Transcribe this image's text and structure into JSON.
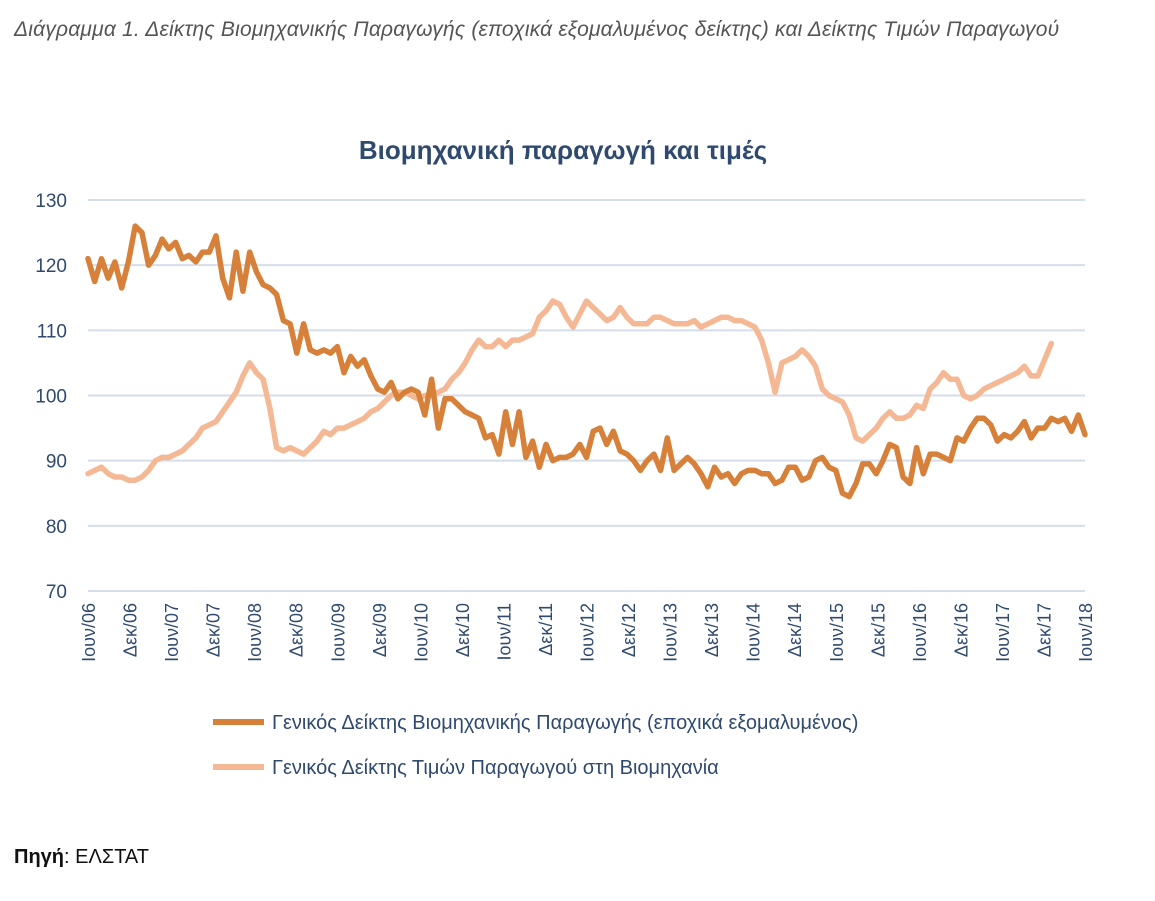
{
  "caption": "Διάγραμμα 1. Δείκτης Βιομηχανικής Παραγωγής (εποχικά εξομαλυμένος δείκτης) και Δείκτης Τιμών Παραγωγού",
  "source": {
    "label": "Πηγή",
    "separator": ": ",
    "value": "ΕΛΣΤΑΤ"
  },
  "colors": {
    "production": "#D6803A",
    "prices": "#F5B895",
    "title": "#2F4A6E",
    "axis_text": "#2F4A6E",
    "grid": "#D5DEE9"
  },
  "chart_data": {
    "type": "line",
    "title": "Βιομηχανική παραγωγή και τιμές",
    "xlabel": "",
    "ylabel": "",
    "ylim": [
      70,
      130
    ],
    "yticks": [
      70,
      80,
      90,
      100,
      110,
      120,
      130
    ],
    "grid": true,
    "legend_position": "bottom",
    "x_start": "2006-06",
    "x_end": "2018-06",
    "x_tick_labels": [
      "Ιουν/06",
      "Δεκ/06",
      "Ιουν/07",
      "Δεκ/07",
      "Ιουν/08",
      "Δεκ/08",
      "Ιουν/09",
      "Δεκ/09",
      "Ιουν/10",
      "Δεκ/10",
      "Ιουν/11",
      "Δεκ/11",
      "Ιουν/12",
      "Δεκ/12",
      "Ιουν/13",
      "Δεκ/13",
      "Ιουν/14",
      "Δεκ/14",
      "Ιουν/15",
      "Δεκ/15",
      "Ιουν/16",
      "Δεκ/16",
      "Ιουν/17",
      "Δεκ/17",
      "Ιουν/18"
    ],
    "series": [
      {
        "name": "Γενικός Δείκτης Βιομηχανικής Παραγωγής (εποχικά εξομαλυμένος)",
        "values": [
          121.0,
          117.5,
          121.0,
          118.0,
          120.5,
          116.5,
          120.5,
          126.0,
          125.0,
          120.0,
          121.5,
          124.0,
          122.5,
          123.5,
          121.0,
          121.5,
          120.5,
          122.0,
          122.0,
          124.5,
          118.0,
          115.0,
          122.0,
          116.0,
          122.0,
          119.0,
          117.0,
          116.5,
          115.5,
          111.5,
          111.0,
          106.5,
          111.0,
          107.0,
          106.5,
          107.0,
          106.5,
          107.5,
          103.5,
          106.0,
          104.5,
          105.5,
          103.0,
          101.0,
          100.5,
          102.0,
          99.5,
          100.5,
          101.0,
          100.5,
          97.0,
          102.5,
          95.0,
          99.5,
          99.5,
          98.5,
          97.5,
          97.0,
          96.5,
          93.5,
          94.0,
          91.0,
          97.5,
          92.5,
          97.5,
          90.5,
          93.0,
          89.0,
          92.5,
          90.0,
          90.5,
          90.5,
          91.0,
          92.5,
          90.5,
          94.5,
          95.0,
          92.5,
          94.5,
          91.5,
          91.0,
          90.0,
          88.5,
          90.0,
          91.0,
          88.5,
          93.5,
          88.5,
          89.5,
          90.5,
          89.5,
          88.0,
          86.0,
          89.0,
          87.5,
          88.0,
          86.5,
          88.0,
          88.5,
          88.5,
          88.0,
          88.0,
          86.5,
          87.0,
          89.0,
          89.0,
          87.0,
          87.5,
          90.0,
          90.5,
          89.0,
          88.5,
          85.0,
          84.5,
          86.5,
          89.5,
          89.5,
          88.0,
          90.0,
          92.5,
          92.0,
          87.5,
          86.5,
          92.0,
          88.0,
          91.0,
          91.0,
          90.5,
          90.0,
          93.5,
          93.0,
          95.0,
          96.5,
          96.5,
          95.5,
          93.0,
          94.0,
          93.5,
          94.5,
          96.0,
          93.5,
          95.0,
          95.0,
          96.5,
          96.0,
          96.5,
          94.5,
          97.0,
          94.0
        ]
      },
      {
        "name": "Γενικός Δείκτης Τιμών Παραγωγού στη Βιομηχανία",
        "values": [
          88.0,
          88.5,
          89.0,
          88.0,
          87.5,
          87.5,
          87.0,
          87.0,
          87.5,
          88.5,
          90.0,
          90.5,
          90.5,
          91.0,
          91.5,
          92.5,
          93.5,
          95.0,
          95.5,
          96.0,
          97.5,
          99.0,
          100.5,
          103.0,
          105.0,
          103.5,
          102.5,
          98.0,
          92.0,
          91.5,
          92.0,
          91.5,
          91.0,
          92.0,
          93.0,
          94.5,
          94.0,
          95.0,
          95.0,
          95.5,
          96.0,
          96.5,
          97.5,
          98.0,
          99.0,
          100.0,
          100.5,
          100.5,
          100.0,
          99.5,
          100.0,
          100.0,
          100.5,
          101.0,
          102.5,
          103.5,
          105.0,
          107.0,
          108.5,
          107.5,
          107.5,
          108.5,
          107.5,
          108.5,
          108.5,
          109.0,
          109.5,
          112.0,
          113.0,
          114.5,
          114.0,
          112.0,
          110.5,
          112.5,
          114.5,
          113.5,
          112.5,
          111.5,
          112.0,
          113.5,
          112.0,
          111.0,
          111.0,
          111.0,
          112.0,
          112.0,
          111.5,
          111.0,
          111.0,
          111.0,
          111.5,
          110.5,
          111.0,
          111.5,
          112.0,
          112.0,
          111.5,
          111.5,
          111.0,
          110.5,
          108.5,
          105.0,
          100.5,
          105.0,
          105.5,
          106.0,
          107.0,
          106.0,
          104.5,
          101.0,
          100.0,
          99.5,
          99.0,
          97.0,
          93.5,
          93.0,
          94.0,
          95.0,
          96.5,
          97.5,
          96.5,
          96.5,
          97.0,
          98.5,
          98.0,
          101.0,
          102.0,
          103.5,
          102.5,
          102.5,
          100.0,
          99.5,
          100.0,
          101.0,
          101.5,
          102.0,
          102.5,
          103.0,
          103.5,
          104.5,
          103.0,
          103.0,
          105.5,
          108.0
        ]
      }
    ]
  }
}
